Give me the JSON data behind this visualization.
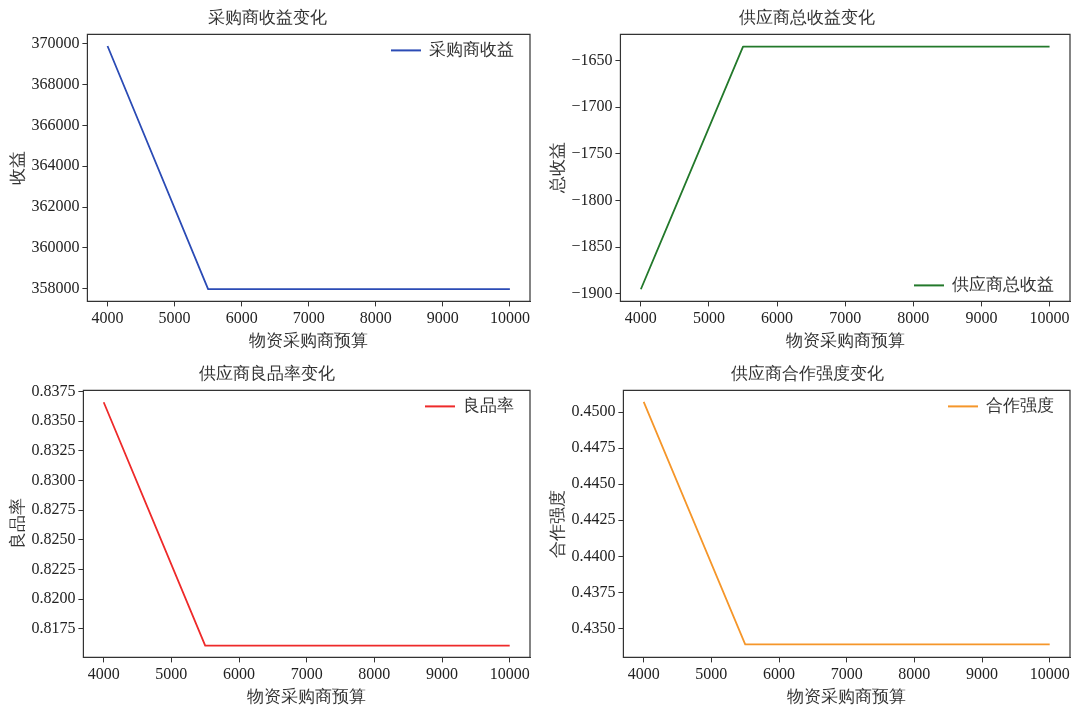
{
  "chart_data": [
    {
      "type": "line",
      "title": "采购商收益变化",
      "xlabel": "物资采购商预算",
      "ylabel": "收益",
      "x": [
        4000,
        5500,
        10000
      ],
      "series": [
        {
          "name": "采购商收益",
          "color": "#2b4bb5",
          "values": [
            369900,
            357970,
            357970
          ]
        }
      ],
      "xlim": [
        3700,
        10300
      ],
      "xticks": [
        4000,
        5000,
        6000,
        7000,
        8000,
        9000,
        10000
      ],
      "ylim": [
        357370,
        370470
      ],
      "yticks": [
        358000,
        360000,
        362000,
        364000,
        366000,
        368000,
        370000
      ],
      "grid": false,
      "legend": "top right",
      "marker": "none",
      "line_style": "solid"
    },
    {
      "type": "line",
      "title": "供应商总收益变化",
      "xlabel": "物资采购商预算",
      "ylabel": "总收益",
      "x": [
        4000,
        5500,
        10000
      ],
      "series": [
        {
          "name": "供应商总收益",
          "color": "#23792b",
          "values": [
            -1895,
            -1635,
            -1635
          ]
        }
      ],
      "xlim": [
        3700,
        10300
      ],
      "xticks": [
        4000,
        5000,
        6000,
        7000,
        8000,
        9000,
        10000
      ],
      "ylim": [
        -1908,
        -1622
      ],
      "yticks": [
        {
          "value": -1900,
          "label": "−1900"
        },
        {
          "value": -1850,
          "label": "−1850"
        },
        {
          "value": -1800,
          "label": "−1800"
        },
        {
          "value": -1750,
          "label": "−1750"
        },
        {
          "value": -1700,
          "label": "−1700"
        },
        {
          "value": -1650,
          "label": "−1650"
        }
      ],
      "grid": false,
      "legend": "bottom right",
      "marker": "none",
      "line_style": "solid"
    },
    {
      "type": "line",
      "title": "供应商良品率变化",
      "xlabel": "物资采购商预算",
      "ylabel": "良品率",
      "x": [
        4000,
        5500,
        10000
      ],
      "series": [
        {
          "name": "良品率",
          "color": "#ee2a2a",
          "values": [
            0.8366,
            0.8161,
            0.8161
          ]
        }
      ],
      "xlim": [
        3700,
        10300
      ],
      "xticks": [
        4000,
        5000,
        6000,
        7000,
        8000,
        9000,
        10000
      ],
      "ylim": [
        0.8151,
        0.8376
      ],
      "yticks": [
        {
          "value": 0.8175,
          "label": "0.8175"
        },
        {
          "value": 0.82,
          "label": "0.8200"
        },
        {
          "value": 0.8225,
          "label": "0.8225"
        },
        {
          "value": 0.825,
          "label": "0.8250"
        },
        {
          "value": 0.8275,
          "label": "0.8275"
        },
        {
          "value": 0.83,
          "label": "0.8300"
        },
        {
          "value": 0.8325,
          "label": "0.8325"
        },
        {
          "value": 0.835,
          "label": "0.8350"
        },
        {
          "value": 0.8375,
          "label": "0.8375"
        }
      ],
      "grid": false,
      "legend": "top right",
      "marker": "none",
      "line_style": "solid"
    },
    {
      "type": "line",
      "title": "供应商合作强度变化",
      "xlabel": "物资采购商预算",
      "ylabel": "合作强度",
      "x": [
        4000,
        5500,
        10000
      ],
      "series": [
        {
          "name": "合作强度",
          "color": "#f5962a",
          "values": [
            0.4507,
            0.4339,
            0.4339
          ]
        }
      ],
      "xlim": [
        3700,
        10300
      ],
      "xticks": [
        4000,
        5000,
        6000,
        7000,
        8000,
        9000,
        10000
      ],
      "ylim": [
        0.433,
        0.4515
      ],
      "yticks": [
        {
          "value": 0.435,
          "label": "0.4350"
        },
        {
          "value": 0.4375,
          "label": "0.4375"
        },
        {
          "value": 0.44,
          "label": "0.4400"
        },
        {
          "value": 0.4425,
          "label": "0.4425"
        },
        {
          "value": 0.445,
          "label": "0.4450"
        },
        {
          "value": 0.4475,
          "label": "0.4475"
        },
        {
          "value": 0.45,
          "label": "0.4500"
        }
      ],
      "grid": false,
      "legend": "top right",
      "marker": "none",
      "line_style": "solid"
    }
  ]
}
